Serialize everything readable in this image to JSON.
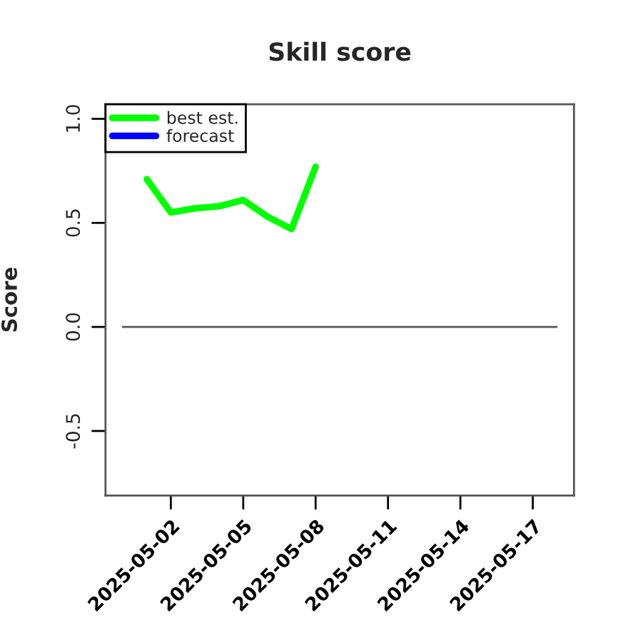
{
  "chart_data": {
    "type": "line",
    "title": "Skill score",
    "ylabel": "Score",
    "x": [
      "2025-05-01",
      "2025-05-02",
      "2025-05-03",
      "2025-05-04",
      "2025-05-05",
      "2025-05-06",
      "2025-05-07",
      "2025-05-08"
    ],
    "series": [
      {
        "name": "best est.",
        "color": "#00ff00",
        "values": [
          0.71,
          0.55,
          0.57,
          0.58,
          0.61,
          0.53,
          0.47,
          0.77
        ]
      },
      {
        "name": "forecast",
        "color": "#0000ff",
        "values": [
          null,
          null,
          null,
          null,
          null,
          null,
          null,
          null
        ]
      }
    ],
    "xlim": [
      "2025-04-29T07:00",
      "2025-05-18T17:00"
    ],
    "xticks": [
      "2025-05-02",
      "2025-05-05",
      "2025-05-08",
      "2025-05-11",
      "2025-05-14",
      "2025-05-17"
    ],
    "ylim": [
      -0.81,
      1.07
    ],
    "yticks": [
      {
        "value": -0.5,
        "label": "-0.5"
      },
      {
        "value": 0,
        "label": "0.0"
      },
      {
        "value": 0.5,
        "label": "0.5"
      },
      {
        "value": 1,
        "label": "1.0"
      }
    ],
    "ref_lines": [
      {
        "axis": "y",
        "value": 0,
        "color": "#555555"
      }
    ],
    "grid": false,
    "legend": "top left",
    "line_style": "solid",
    "marker": "none"
  }
}
